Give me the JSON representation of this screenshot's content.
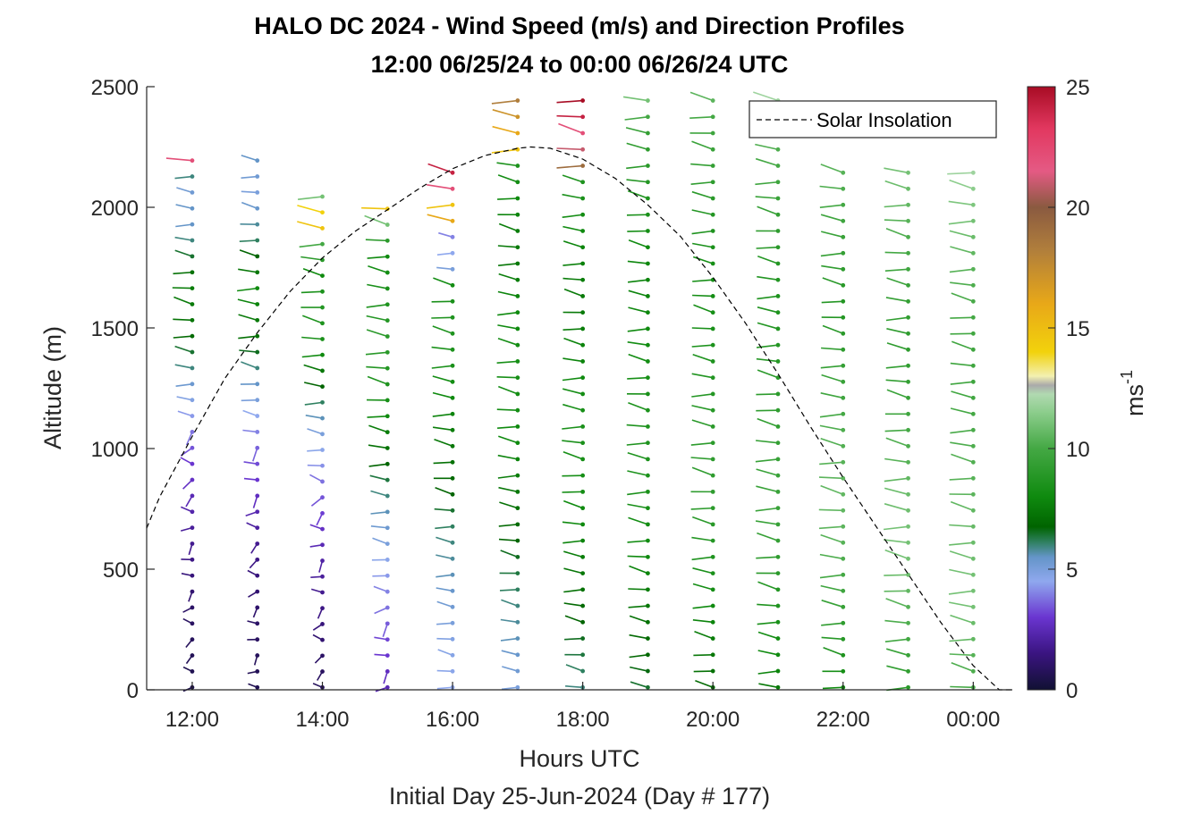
{
  "chart_data": {
    "type": "wind-barb-profile",
    "title": "HALO DC 2024 - Wind Speed (m/s) and Direction Profiles",
    "subtitle": "12:00 06/25/24 to 00:00 06/26/24  UTC",
    "xlabel": "Hours UTC",
    "xlabel2": "Initial Day 25-Jun-2024 (Day # 177)",
    "ylabel": "Altitude (m)",
    "x_tick_labels": [
      "12:00",
      "14:00",
      "16:00",
      "18:00",
      "20:00",
      "22:00",
      "00:00"
    ],
    "x_tick_hours": [
      12,
      14,
      16,
      18,
      20,
      22,
      24
    ],
    "xlim": [
      11.3,
      24.6
    ],
    "y_ticks": [
      0,
      500,
      1000,
      1500,
      2000,
      2500
    ],
    "ylim": [
      0,
      2500
    ],
    "colorbar": {
      "label": "ms",
      "exponent": "-1",
      "ticks": [
        0,
        5,
        10,
        15,
        20,
        25
      ],
      "range": [
        0,
        25
      ]
    },
    "legend": {
      "entries": [
        "Solar Insolation"
      ],
      "placement": "top-right",
      "line_style": "dashed"
    },
    "solar_insolation_curve": {
      "x": [
        11.3,
        11.5,
        12.0,
        12.5,
        13.0,
        13.5,
        14.0,
        14.5,
        15.0,
        15.5,
        16.0,
        16.5,
        17.0,
        17.2,
        17.5,
        18.0,
        18.5,
        19.0,
        19.5,
        20.0,
        20.5,
        21.0,
        21.5,
        22.0,
        22.5,
        23.0,
        23.5,
        24.0,
        24.4,
        24.6
      ],
      "y": [
        670,
        800,
        1050,
        1290,
        1480,
        1650,
        1790,
        1900,
        1990,
        2080,
        2160,
        2215,
        2245,
        2250,
        2245,
        2200,
        2120,
        2010,
        1880,
        1710,
        1520,
        1310,
        1090,
        880,
        680,
        480,
        280,
        100,
        0,
        0
      ]
    },
    "profiles": [
      {
        "hour": 12.0,
        "top_m": 2250,
        "speeds": [
          0.5,
          0.6,
          0.7,
          0.8,
          0.9,
          1.0,
          1.2,
          1.4,
          1.6,
          1.8,
          2.0,
          2.3,
          2.5,
          2.8,
          3.0,
          3.4,
          3.8,
          4.3,
          4.8,
          5.3,
          6.0,
          6.5,
          7.0,
          7.3,
          7.5,
          7.6,
          7.2,
          6.5,
          6.0,
          5.5,
          5.5,
          5.2,
          6.0,
          22.0
        ]
      },
      {
        "hour": 13.0,
        "top_m": 2250,
        "speeds": [
          0.6,
          0.7,
          0.8,
          0.9,
          1.0,
          1.1,
          1.2,
          1.4,
          1.6,
          1.8,
          2.1,
          2.4,
          2.7,
          3.0,
          3.3,
          3.6,
          4.0,
          4.5,
          5.0,
          5.5,
          6.0,
          6.6,
          7.2,
          7.5,
          7.8,
          8.0,
          7.4,
          6.8,
          6.2,
          5.8,
          5.4,
          5.0,
          5.2,
          5.5
        ]
      },
      {
        "hour": 14.0,
        "top_m": 2100,
        "speeds": [
          0.8,
          0.9,
          1.0,
          1.2,
          1.4,
          1.6,
          1.8,
          2.0,
          2.2,
          2.5,
          2.8,
          3.1,
          3.4,
          3.8,
          4.2,
          4.6,
          5.0,
          5.6,
          6.2,
          6.8,
          7.4,
          8.0,
          8.4,
          8.6,
          8.8,
          8.5,
          8.0,
          9.0,
          10.0,
          15.0,
          14.5,
          11.0
        ]
      },
      {
        "hour": 15.0,
        "top_m": 2050,
        "speeds": [
          2.5,
          2.7,
          3.0,
          3.2,
          3.5,
          3.8,
          4.0,
          4.3,
          4.6,
          5.0,
          5.3,
          5.6,
          6.0,
          6.4,
          6.8,
          7.2,
          7.6,
          8.0,
          8.3,
          8.6,
          8.8,
          9.0,
          9.0,
          8.8,
          8.6,
          8.4,
          8.2,
          8.0,
          9.0,
          11.0,
          15.0
        ]
      },
      {
        "hour": 16.0,
        "top_m": 2200,
        "speeds": [
          4.5,
          4.6,
          4.7,
          4.8,
          5.0,
          5.2,
          5.4,
          5.6,
          5.8,
          6.0,
          6.2,
          6.5,
          6.8,
          7.0,
          7.2,
          7.4,
          7.6,
          7.8,
          8.0,
          8.2,
          8.4,
          8.5,
          8.6,
          8.6,
          8.4,
          8.2,
          5.0,
          4.5,
          4.0,
          16.0,
          15.0,
          22.0,
          24.0
        ]
      },
      {
        "hour": 17.0,
        "top_m": 2500,
        "speeds": [
          5.0,
          5.2,
          5.4,
          5.6,
          5.8,
          6.0,
          6.2,
          6.4,
          6.6,
          6.8,
          7.0,
          7.2,
          7.4,
          7.6,
          7.8,
          8.0,
          8.0,
          8.2,
          8.2,
          8.3,
          8.3,
          8.2,
          8.0,
          8.0,
          7.8,
          7.6,
          7.4,
          7.5,
          7.6,
          7.8,
          8.0,
          8.2,
          8.5,
          15.0,
          16.0,
          17.0,
          18.0
        ]
      },
      {
        "hour": 18.0,
        "top_m": 2500,
        "speeds": [
          6.0,
          6.2,
          6.4,
          6.6,
          6.8,
          7.0,
          7.2,
          7.4,
          7.6,
          7.8,
          8.0,
          8.0,
          8.2,
          8.3,
          8.3,
          8.4,
          8.4,
          8.3,
          8.2,
          8.0,
          7.8,
          7.8,
          7.6,
          7.5,
          7.5,
          7.6,
          7.7,
          7.8,
          8.0,
          8.2,
          8.4,
          8.6,
          19.0,
          21.0,
          22.0,
          24.0,
          25.0
        ]
      },
      {
        "hour": 19.0,
        "top_m": 2500,
        "speeds": [
          6.5,
          6.7,
          6.9,
          7.0,
          7.2,
          7.4,
          7.6,
          7.8,
          8.0,
          8.1,
          8.2,
          8.3,
          8.4,
          8.5,
          8.6,
          8.6,
          8.6,
          8.5,
          8.4,
          8.3,
          8.2,
          8.1,
          8.0,
          7.9,
          7.8,
          7.8,
          7.9,
          8.0,
          8.2,
          8.4,
          8.6,
          8.8,
          9.0,
          9.2,
          9.4,
          10.0,
          11.0
        ]
      },
      {
        "hour": 20.0,
        "top_m": 2500,
        "speeds": [
          7.0,
          7.2,
          7.4,
          7.6,
          7.8,
          8.0,
          8.2,
          8.4,
          8.6,
          8.8,
          9.0,
          9.1,
          9.2,
          9.2,
          9.2,
          9.1,
          9.0,
          8.9,
          8.8,
          8.7,
          8.6,
          8.5,
          8.4,
          8.3,
          8.2,
          8.2,
          8.3,
          8.4,
          8.6,
          8.8,
          9.0,
          9.2,
          9.4,
          9.6,
          9.8,
          10.0,
          10.5
        ]
      },
      {
        "hour": 21.0,
        "top_m": 2500,
        "speeds": [
          7.5,
          7.8,
          8.0,
          8.2,
          8.4,
          8.6,
          8.8,
          9.0,
          9.2,
          9.4,
          9.5,
          9.6,
          9.6,
          9.6,
          9.5,
          9.4,
          9.3,
          9.2,
          9.1,
          9.0,
          8.9,
          8.8,
          8.7,
          8.6,
          8.6,
          8.7,
          8.8,
          9.0,
          9.2,
          9.4,
          9.6,
          9.8,
          10.0,
          10.2,
          10.5,
          11.0,
          12.0
        ]
      },
      {
        "hour": 22.0,
        "top_m": 2200,
        "speeds": [
          8.0,
          8.3,
          8.6,
          8.9,
          9.2,
          9.5,
          9.8,
          10.0,
          10.2,
          10.4,
          10.5,
          10.6,
          10.6,
          10.5,
          10.4,
          10.3,
          10.2,
          10.0,
          9.8,
          9.6,
          9.4,
          9.2,
          9.0,
          8.8,
          8.8,
          9.0,
          9.2,
          9.4,
          9.6,
          9.8,
          10.0,
          10.2,
          10.4
        ]
      },
      {
        "hour": 23.0,
        "top_m": 2200,
        "speeds": [
          9.0,
          9.3,
          9.6,
          9.9,
          10.2,
          10.4,
          10.6,
          10.8,
          11.0,
          11.0,
          11.0,
          10.9,
          10.8,
          10.6,
          10.4,
          10.2,
          10.0,
          9.8,
          9.6,
          9.4,
          9.3,
          9.2,
          9.2,
          9.3,
          9.4,
          9.6,
          9.8,
          10.0,
          10.2,
          10.4,
          10.6,
          10.8,
          11.0
        ]
      },
      {
        "hour": 24.0,
        "top_m": 2200,
        "speeds": [
          10.0,
          10.2,
          10.4,
          10.6,
          10.8,
          11.0,
          11.0,
          11.0,
          10.9,
          10.8,
          10.7,
          10.6,
          10.5,
          10.4,
          10.3,
          10.2,
          10.1,
          10.0,
          9.9,
          9.8,
          9.8,
          9.8,
          9.9,
          10.0,
          10.1,
          10.2,
          10.4,
          10.6,
          10.8,
          11.0,
          11.2,
          11.5,
          12.0
        ]
      }
    ]
  }
}
